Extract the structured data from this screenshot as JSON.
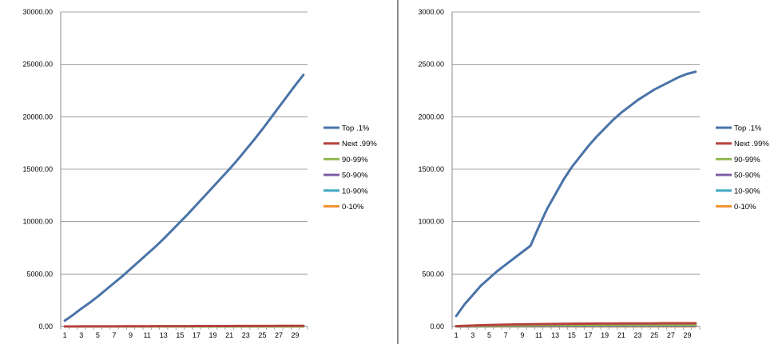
{
  "chart_data": [
    {
      "type": "line",
      "title": "",
      "xlabel": "",
      "ylabel": "",
      "ylim": [
        0,
        30000
      ],
      "y_ticks": [
        "0.00",
        "5000.00",
        "10000.00",
        "15000.00",
        "20000.00",
        "25000.00",
        "30000.00"
      ],
      "x": [
        1,
        2,
        3,
        4,
        5,
        6,
        7,
        8,
        9,
        10,
        11,
        12,
        13,
        14,
        15,
        16,
        17,
        18,
        19,
        20,
        21,
        22,
        23,
        24,
        25,
        26,
        27,
        28,
        29,
        30
      ],
      "x_tick_labels": [
        "1",
        "3",
        "5",
        "7",
        "9",
        "11",
        "13",
        "15",
        "17",
        "19",
        "21",
        "23",
        "25",
        "27",
        "29"
      ],
      "grid": "horizontal",
      "legend_position": "right",
      "series": [
        {
          "name": "Top .1%",
          "color": "#4a74a8",
          "values": [
            550,
            1100,
            1700,
            2250,
            2850,
            3500,
            4150,
            4800,
            5500,
            6200,
            6900,
            7600,
            8350,
            9150,
            9950,
            10750,
            11600,
            12450,
            13300,
            14150,
            15000,
            15900,
            16850,
            17800,
            18800,
            19850,
            20900,
            21950,
            23000,
            24000
          ]
        },
        {
          "name": "Next .99%",
          "color": "#b6423f",
          "values": [
            2,
            4,
            6,
            8,
            10,
            12,
            14,
            16,
            18,
            20,
            22,
            24,
            26,
            28,
            30,
            32,
            34,
            36,
            38,
            40,
            42,
            44,
            46,
            48,
            50,
            52,
            54,
            56,
            58,
            60
          ]
        },
        {
          "name": "90-99%",
          "color": "#8fb84f",
          "values": [
            1,
            1,
            1,
            1,
            1,
            1,
            1,
            1,
            1,
            1,
            1,
            1,
            1,
            1,
            1,
            1,
            1,
            1,
            1,
            1,
            1,
            1,
            1,
            1,
            1,
            1,
            1,
            1,
            1,
            1
          ]
        },
        {
          "name": "50-90%",
          "color": "#7b5ea7",
          "values": [
            0,
            0,
            0,
            0,
            0,
            0,
            0,
            0,
            0,
            0,
            0,
            0,
            0,
            0,
            0,
            0,
            0,
            0,
            0,
            0,
            0,
            0,
            0,
            0,
            0,
            0,
            0,
            0,
            0,
            0
          ]
        },
        {
          "name": "10-90%",
          "color": "#41a8c4",
          "values": [
            0,
            0,
            0,
            0,
            0,
            0,
            0,
            0,
            0,
            0,
            0,
            0,
            0,
            0,
            0,
            0,
            0,
            0,
            0,
            0,
            0,
            0,
            0,
            0,
            0,
            0,
            0,
            0,
            0,
            0
          ]
        },
        {
          "name": "0-10%",
          "color": "#f39434",
          "values": [
            0,
            0,
            0,
            0,
            0,
            0,
            0,
            0,
            0,
            0,
            0,
            0,
            0,
            0,
            0,
            0,
            0,
            0,
            0,
            0,
            0,
            0,
            0,
            0,
            0,
            0,
            0,
            0,
            0,
            0
          ]
        }
      ]
    },
    {
      "type": "line",
      "title": "",
      "xlabel": "",
      "ylabel": "",
      "ylim": [
        0,
        3000
      ],
      "y_ticks": [
        "0.00",
        "500.00",
        "1000.00",
        "1500.00",
        "2000.00",
        "2500.00",
        "3000.00"
      ],
      "x": [
        1,
        2,
        3,
        4,
        5,
        6,
        7,
        8,
        9,
        10,
        11,
        12,
        13,
        14,
        15,
        16,
        17,
        18,
        19,
        20,
        21,
        22,
        23,
        24,
        25,
        26,
        27,
        28,
        29,
        30
      ],
      "x_tick_labels": [
        "1",
        "3",
        "5",
        "7",
        "9",
        "11",
        "13",
        "15",
        "17",
        "19",
        "21",
        "23",
        "25",
        "27",
        "29"
      ],
      "grid": "horizontal",
      "legend_position": "right",
      "series": [
        {
          "name": "Top .1%",
          "color": "#4a74a8",
          "values": [
            100,
            210,
            300,
            390,
            460,
            530,
            590,
            650,
            710,
            770,
            950,
            1120,
            1260,
            1400,
            1520,
            1620,
            1720,
            1810,
            1890,
            1970,
            2040,
            2100,
            2160,
            2210,
            2260,
            2300,
            2340,
            2380,
            2410,
            2430
          ]
        },
        {
          "name": "Next .99%",
          "color": "#b6423f",
          "values": [
            3,
            6,
            9,
            11,
            13,
            15,
            17,
            19,
            20,
            21,
            22,
            23,
            24,
            25,
            26,
            27,
            27,
            28,
            28,
            28,
            29,
            29,
            29,
            29,
            29,
            30,
            30,
            30,
            30,
            30
          ]
        },
        {
          "name": "90-99%",
          "color": "#8fb84f",
          "values": [
            2,
            3,
            4,
            5,
            6,
            7,
            8,
            9,
            10,
            10,
            11,
            11,
            12,
            12,
            12,
            13,
            13,
            13,
            13,
            13,
            14,
            14,
            14,
            14,
            14,
            14,
            14,
            14,
            14,
            14
          ]
        },
        {
          "name": "50-90%",
          "color": "#7b5ea7",
          "values": [
            1,
            2,
            3,
            3,
            4,
            4,
            5,
            5,
            5,
            6,
            6,
            6,
            6,
            7,
            7,
            7,
            7,
            7,
            7,
            7,
            8,
            8,
            8,
            8,
            8,
            8,
            8,
            8,
            8,
            8
          ]
        },
        {
          "name": "10-90%",
          "color": "#41a8c4",
          "values": [
            1,
            1,
            2,
            2,
            2,
            3,
            3,
            3,
            3,
            3,
            4,
            4,
            4,
            4,
            4,
            4,
            4,
            4,
            4,
            4,
            5,
            5,
            5,
            5,
            5,
            5,
            5,
            5,
            5,
            5
          ]
        },
        {
          "name": "0-10%",
          "color": "#f39434",
          "values": [
            0,
            1,
            1,
            1,
            1,
            1,
            1,
            1,
            1,
            1,
            1,
            1,
            1,
            1,
            1,
            1,
            1,
            1,
            1,
            1,
            1,
            1,
            1,
            1,
            1,
            1,
            1,
            1,
            1,
            1
          ]
        }
      ]
    }
  ]
}
